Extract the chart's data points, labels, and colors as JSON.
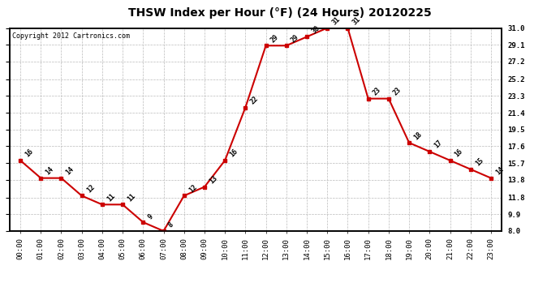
{
  "title": "THSW Index per Hour (°F) (24 Hours) 20120225",
  "copyright": "Copyright 2012 Cartronics.com",
  "hours": [
    0,
    1,
    2,
    3,
    4,
    5,
    6,
    7,
    8,
    9,
    10,
    11,
    12,
    13,
    14,
    15,
    16,
    17,
    18,
    19,
    20,
    21,
    22,
    23
  ],
  "values": [
    16,
    14,
    14,
    12,
    11,
    11,
    9,
    8,
    12,
    13,
    16,
    22,
    29,
    29,
    30,
    31,
    31,
    23,
    23,
    18,
    17,
    16,
    15,
    14
  ],
  "xlabels": [
    "00:00",
    "01:00",
    "02:00",
    "03:00",
    "04:00",
    "05:00",
    "06:00",
    "07:00",
    "08:00",
    "09:00",
    "10:00",
    "11:00",
    "12:00",
    "13:00",
    "14:00",
    "15:00",
    "16:00",
    "17:00",
    "18:00",
    "19:00",
    "20:00",
    "21:00",
    "22:00",
    "23:00"
  ],
  "yticks": [
    8.0,
    9.9,
    11.8,
    13.8,
    15.7,
    17.6,
    19.5,
    21.4,
    23.3,
    25.2,
    27.2,
    29.1,
    31.0
  ],
  "ymin": 8.0,
  "ymax": 31.0,
  "line_color": "#cc0000",
  "marker_color": "#cc0000",
  "bg_color": "#ffffff",
  "grid_color": "#bbbbbb",
  "title_fontsize": 10,
  "tick_fontsize": 6.5,
  "annotation_fontsize": 6,
  "copyright_fontsize": 6
}
